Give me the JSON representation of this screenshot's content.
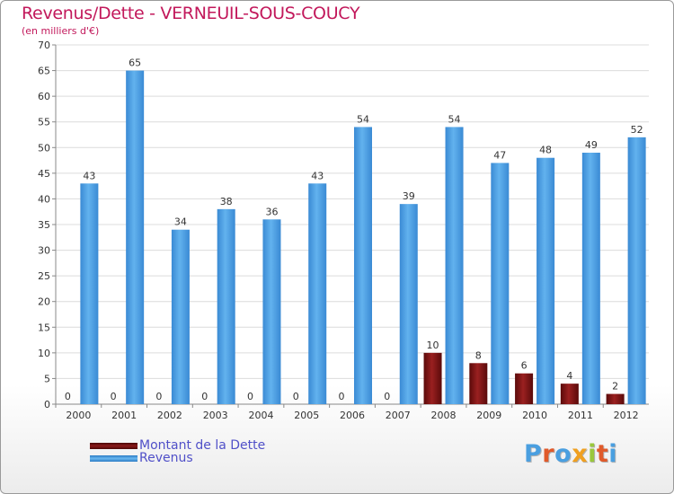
{
  "chart_data": {
    "type": "bar",
    "title": "Revenus/Dette - VERNEUIL-SOUS-COUCY",
    "subtitle": "(en milliers d'€)",
    "categories": [
      "2000",
      "2001",
      "2002",
      "2003",
      "2004",
      "2005",
      "2006",
      "2007",
      "2008",
      "2009",
      "2010",
      "2011",
      "2012"
    ],
    "series": [
      {
        "name": "Montant de la Dette",
        "color": "#7a1010",
        "values": [
          0,
          0,
          0,
          0,
          0,
          0,
          0,
          0,
          10,
          8,
          6,
          4,
          2
        ]
      },
      {
        "name": "Revenus",
        "color": "#4a9fe0",
        "values": [
          43,
          65,
          34,
          38,
          36,
          43,
          54,
          39,
          54,
          47,
          48,
          49,
          52
        ]
      }
    ],
    "ylim": [
      0,
      70
    ],
    "yticks": [
      0,
      5,
      10,
      15,
      20,
      25,
      30,
      35,
      40,
      45,
      50,
      55,
      60,
      65,
      70
    ],
    "grid": true,
    "legend": "bottom-left"
  },
  "logo": {
    "text": "Proxiti",
    "colors": [
      "#4a9fe0",
      "#e05a2a",
      "#4a9fe0",
      "#f0a020",
      "#9ac83c",
      "#e05a2a",
      "#4a9fe0"
    ]
  }
}
